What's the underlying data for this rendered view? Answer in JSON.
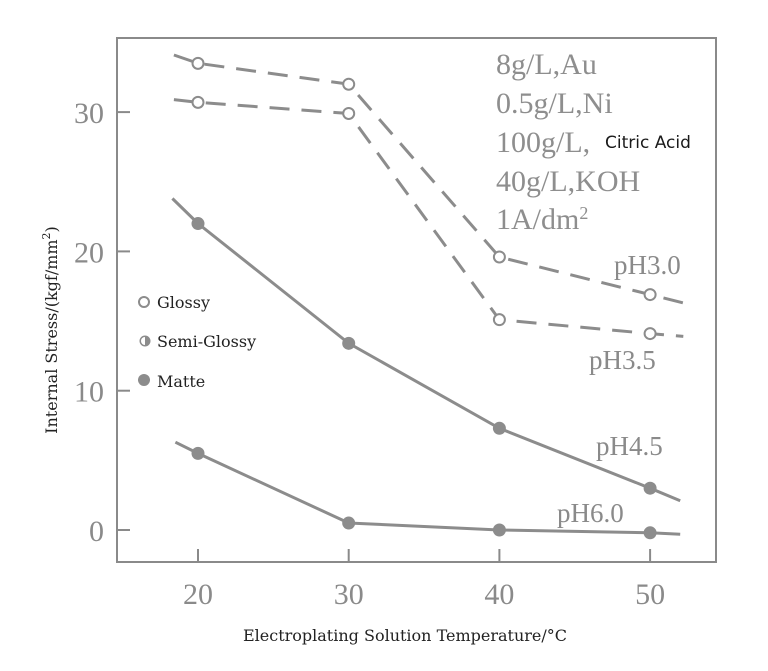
{
  "chart_data": {
    "type": "line",
    "title": "",
    "xlabel": "Electroplating Solution Temperature/°C",
    "ylabel": "Internal Stress/(kgf/mm²)",
    "ylabel_main": "Internal Stress/(kgf/mm",
    "ylabel_sup": "2",
    "ylabel_tail": ")",
    "xlim": [
      14.7,
      53.5
    ],
    "ylim": [
      -2.4,
      35.3
    ],
    "grid": false,
    "x_ticks": [
      20,
      30,
      40,
      50
    ],
    "y_ticks": [
      0,
      10,
      20,
      30
    ],
    "conditions": [
      "8g/L,Au",
      "0.5g/L,Ni",
      "100g/L,",
      "40g/L,KOH",
      "1A/dm"
    ],
    "condition_inline": "Citric Acid",
    "condition_sup": "2",
    "legend": {
      "position": "left-middle",
      "entries": [
        {
          "label": "Glossy",
          "marker": "open-circle"
        },
        {
          "label": "Semi-Glossy",
          "marker": "half-filled-circle"
        },
        {
          "label": "Matte",
          "marker": "filled-circle"
        }
      ]
    },
    "series": [
      {
        "name": "pH3.0",
        "style": "dashed",
        "marker": "open-circle",
        "finish": "Glossy",
        "x": [
          20,
          30,
          40,
          50
        ],
        "values": [
          33.5,
          32.0,
          19.6,
          16.9
        ],
        "line_start": [
          18.4,
          34.1
        ],
        "line_end": [
          52.2,
          16.3
        ]
      },
      {
        "name": "pH3.5",
        "style": "dashed",
        "marker": "open-circle",
        "finish": "Glossy/Semi-Glossy",
        "x": [
          20,
          30,
          40,
          50
        ],
        "values": [
          30.7,
          29.9,
          15.1,
          14.1
        ],
        "line_start": [
          18.4,
          30.9
        ],
        "line_end": [
          52.2,
          13.9
        ]
      },
      {
        "name": "pH4.5",
        "style": "solid",
        "marker": "filled-circle",
        "finish": "Matte",
        "x": [
          20,
          30,
          40,
          50
        ],
        "values": [
          22.0,
          13.4,
          7.3,
          3.0
        ],
        "line_start": [
          18.3,
          23.8
        ],
        "line_end": [
          52.0,
          2.1
        ]
      },
      {
        "name": "pH6.0",
        "style": "solid",
        "marker": "filled-circle",
        "finish": "Matte",
        "x": [
          20,
          30,
          40,
          50
        ],
        "values": [
          5.5,
          0.5,
          0.0,
          -0.2
        ],
        "line_start": [
          18.5,
          6.3
        ],
        "line_end": [
          52.0,
          -0.3
        ]
      }
    ],
    "colors": {
      "line": "#8c8c8c",
      "frame": "#8a8a8a",
      "tick_text": "#8a8a8a",
      "label_text": "#222222"
    }
  }
}
